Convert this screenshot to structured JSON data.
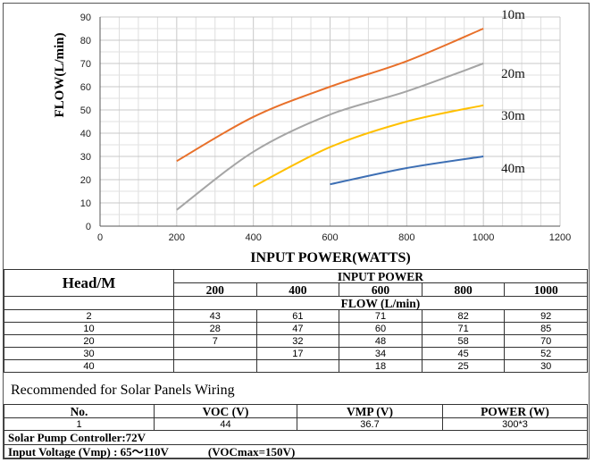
{
  "chart_data": {
    "type": "line",
    "xlabel": "INPUT POWER(WATTS)",
    "ylabel": "FLOW(L/min)",
    "xlim": [
      0,
      1200
    ],
    "ylim": [
      0,
      90
    ],
    "xticks": [
      "0",
      "200",
      "400",
      "600",
      "800",
      "1000",
      "1200"
    ],
    "yticks": [
      "0",
      "10",
      "20",
      "30",
      "40",
      "50",
      "60",
      "70",
      "80",
      "90"
    ],
    "grid": true,
    "series": [
      {
        "name": "10m",
        "color": "#E8702A",
        "x": [
          200,
          400,
          600,
          800,
          1000
        ],
        "y": [
          28,
          47,
          60,
          71,
          85
        ]
      },
      {
        "name": "20m",
        "color": "#A5A5A5",
        "x": [
          200,
          400,
          600,
          800,
          1000
        ],
        "y": [
          7,
          32,
          48,
          58,
          70
        ]
      },
      {
        "name": "30m",
        "color": "#FFC000",
        "x": [
          400,
          600,
          800,
          1000
        ],
        "y": [
          17,
          34,
          45,
          52
        ]
      },
      {
        "name": "40m",
        "color": "#3D6FB4",
        "x": [
          600,
          800,
          1000
        ],
        "y": [
          18,
          25,
          30
        ]
      }
    ]
  },
  "performance_table": {
    "head_label": "Head/M",
    "input_power_label": "INPUT POWER",
    "flow_label": "FLOW (L/min)",
    "powers": [
      "200",
      "400",
      "600",
      "800",
      "1000"
    ],
    "rows": [
      {
        "head": "2",
        "values": [
          "43",
          "61",
          "71",
          "82",
          "92"
        ]
      },
      {
        "head": "10",
        "values": [
          "28",
          "47",
          "60",
          "71",
          "85"
        ]
      },
      {
        "head": "20",
        "values": [
          "7",
          "32",
          "48",
          "58",
          "70"
        ]
      },
      {
        "head": "30",
        "values": [
          "",
          "17",
          "34",
          "45",
          "52"
        ]
      },
      {
        "head": "40",
        "values": [
          "",
          "",
          "18",
          "25",
          "30"
        ]
      }
    ]
  },
  "wiring": {
    "title": "Recommended for Solar Panels Wiring",
    "headers": [
      "No.",
      "VOC (V)",
      "VMP (V)",
      "POWER (W)"
    ],
    "row": [
      "1",
      "44",
      "36.7",
      "300*3"
    ]
  },
  "notes": {
    "controller": "Solar Pump Controller:72V",
    "voltage_prefix": "Input Voltage (Vmp) : 65～110V",
    "voltage_suffix": "(VOCmax=150V)"
  }
}
